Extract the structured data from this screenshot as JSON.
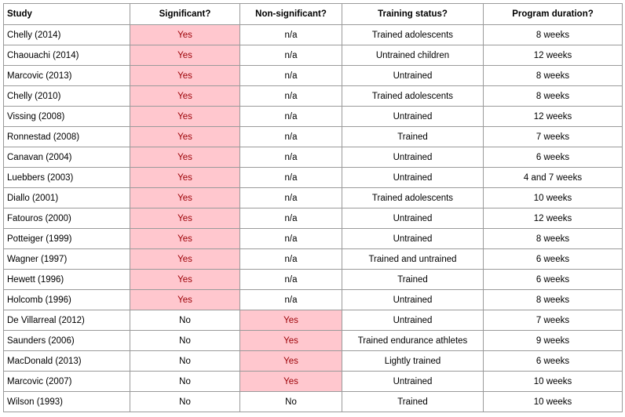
{
  "table": {
    "header": [
      "Study",
      "Significant?",
      "Non-significant?",
      "Training status?",
      "Program duration?"
    ],
    "rows": [
      [
        "Chelly (2014)",
        "Yes",
        "n/a",
        "Trained adolescents",
        "8 weeks"
      ],
      [
        "Chaouachi (2014)",
        "Yes",
        "n/a",
        "Untrained children",
        "12 weeks"
      ],
      [
        "Marcovic (2013)",
        "Yes",
        "n/a",
        "Untrained",
        "8 weeks"
      ],
      [
        "Chelly (2010)",
        "Yes",
        "n/a",
        "Trained adolescents",
        "8 weeks"
      ],
      [
        "Vissing (2008)",
        "Yes",
        "n/a",
        "Untrained",
        "12 weeks"
      ],
      [
        "Ronnestad (2008)",
        "Yes",
        "n/a",
        "Trained",
        "7 weeks"
      ],
      [
        "Canavan (2004)",
        "Yes",
        "n/a",
        "Untrained",
        "6 weeks"
      ],
      [
        "Luebbers (2003)",
        "Yes",
        "n/a",
        "Untrained",
        "4 and 7 weeks"
      ],
      [
        "Diallo (2001)",
        "Yes",
        "n/a",
        "Trained adolescents",
        "10 weeks"
      ],
      [
        "Fatouros (2000)",
        "Yes",
        "n/a",
        "Untrained",
        "12 weeks"
      ],
      [
        "Potteiger (1999)",
        "Yes",
        "n/a",
        "Untrained",
        "8 weeks"
      ],
      [
        "Wagner (1997)",
        "Yes",
        "n/a",
        "Trained and untrained",
        "6 weeks"
      ],
      [
        "Hewett (1996)",
        "Yes",
        "n/a",
        "Trained",
        "6 weeks"
      ],
      [
        "Holcomb (1996)",
        "Yes",
        "n/a",
        "Untrained",
        "8 weeks"
      ],
      [
        "De Villarreal (2012)",
        "No",
        "Yes",
        "Untrained",
        "7 weeks"
      ],
      [
        "Saunders (2006)",
        "No",
        "Yes",
        "Trained endurance athletes",
        "9 weeks"
      ],
      [
        "MacDonald (2013)",
        "No",
        "Yes",
        "Lightly trained",
        "6 weeks"
      ],
      [
        "Marcovic (2007)",
        "No",
        "Yes",
        "Untrained",
        "10 weeks"
      ],
      [
        "Wilson (1993)",
        "No",
        "No",
        "Trained",
        "10 weeks"
      ]
    ]
  }
}
